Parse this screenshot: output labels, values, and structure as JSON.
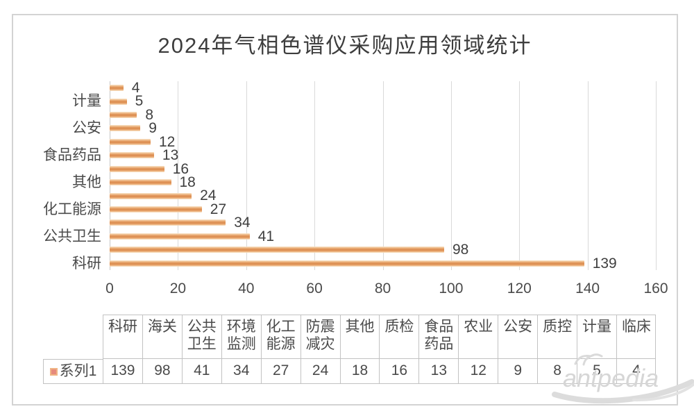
{
  "title": "2024年气相色谱仪采购应用领域统计",
  "watermark": "antpedia",
  "colors": {
    "bar_center": "#dd9054",
    "bar_mid": "#ecb07b",
    "bar_edge": "#f9e8cd",
    "legend_marker_fill": "#e68a7d",
    "legend_marker_border": "#f0b484",
    "grid_line": "#d9d9d9",
    "table_border": "#c2c2c2",
    "text_dark": "#3f3f3f",
    "text_axis": "#4a4a4a",
    "watermark_gray": "#d6d6d6"
  },
  "chart_data": {
    "type": "bar",
    "orientation": "horizontal",
    "title": "2024年气相色谱仪采购应用领域统计",
    "categories": [
      "科研",
      "海关",
      "公共卫生",
      "环境监测",
      "化工能源",
      "防震减灾",
      "其他",
      "质检",
      "食品药品",
      "农业",
      "公安",
      "质控",
      "计量",
      "临床"
    ],
    "series": [
      {
        "name": "系列1",
        "values": [
          139,
          98,
          41,
          34,
          27,
          24,
          18,
          16,
          13,
          12,
          9,
          8,
          5,
          4
        ]
      }
    ],
    "bar_order": "largest (科研=139) at bottom, smallest (临床=4) at top",
    "y_axis_visible_labels": [
      "计量",
      "公安",
      "食品药品",
      "其他",
      "化工能源",
      "公共卫生",
      "科研"
    ],
    "y_axis_label_rule": "every other category labeled",
    "x_ticks": [
      0,
      20,
      40,
      60,
      80,
      100,
      120,
      140,
      160
    ],
    "xlim": [
      0,
      160
    ],
    "grid": "vertical gridlines on",
    "data_labels": "value shown at end of each bar",
    "legend_position": "bottom data table"
  },
  "table": {
    "legend_label": "系列1",
    "columns": [
      "科研",
      "海关",
      "公共卫生",
      "环境监测",
      "化工能源",
      "防震减灾",
      "其他",
      "质检",
      "食品药品",
      "农业",
      "公安",
      "质控",
      "计量",
      "临床"
    ],
    "values": [
      "139",
      "98",
      "41",
      "34",
      "27",
      "24",
      "18",
      "16",
      "13",
      "12",
      "9",
      "8",
      "5",
      "4"
    ]
  }
}
